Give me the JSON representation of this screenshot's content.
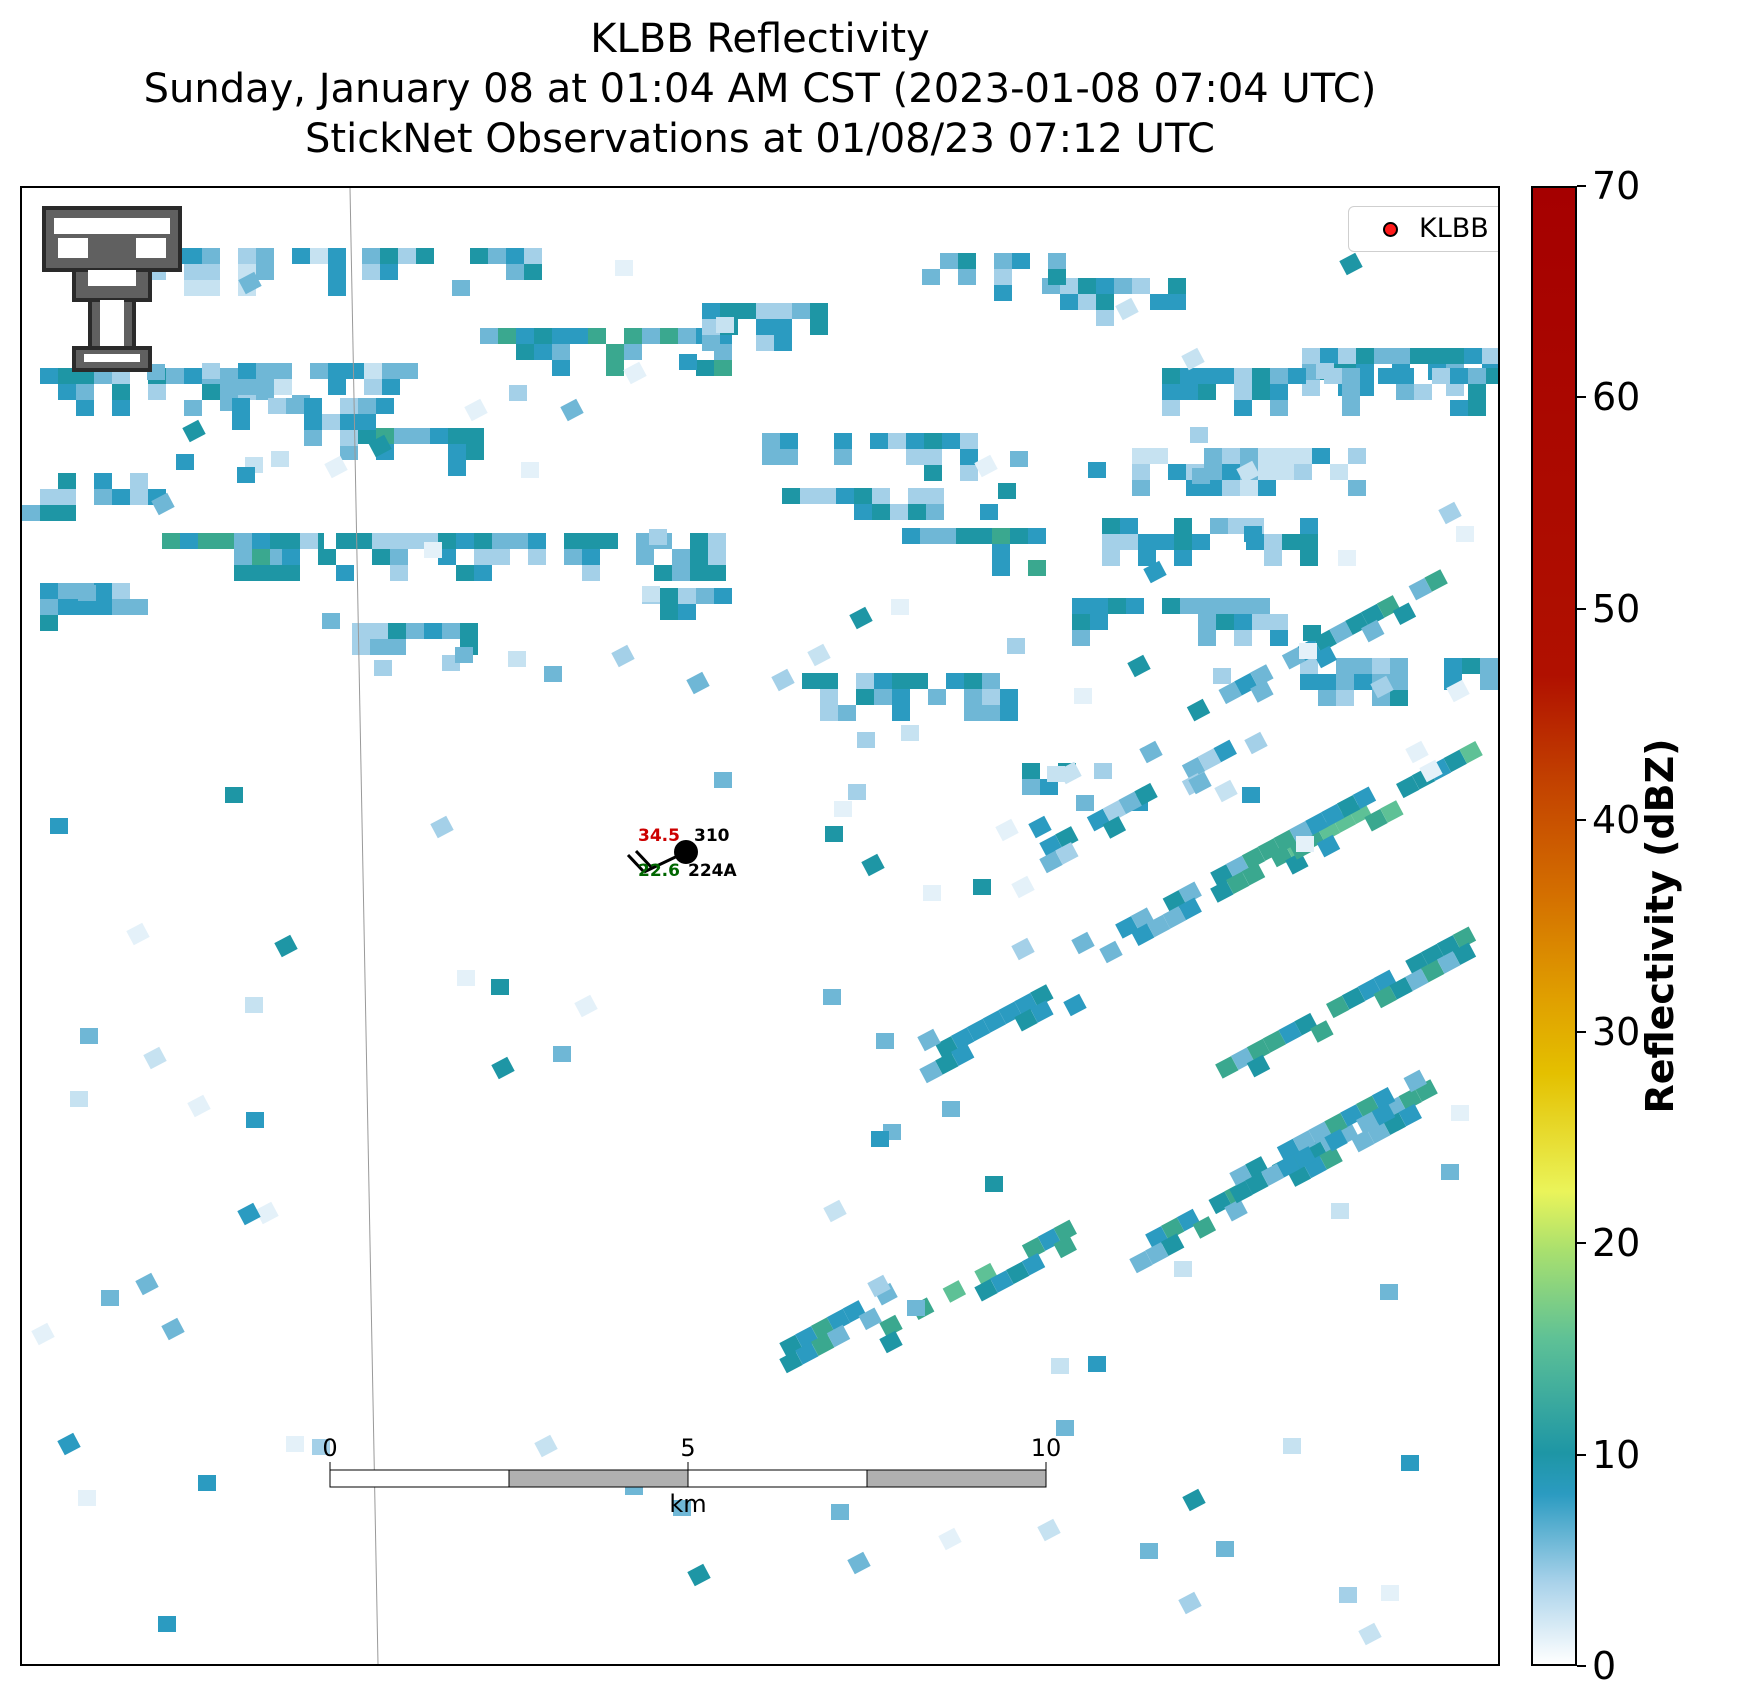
{
  "title": {
    "line1": "KLBB Reflectivity",
    "line2": "Sunday, January 08 at 01:04 AM CST (2023-01-08 07:04 UTC)",
    "line3": "StickNet Observations at 01/08/23 07:12 UTC"
  },
  "legend": {
    "label": "KLBB",
    "marker_color": "#ff1a1a"
  },
  "station": {
    "id": "224A",
    "temperature": "34.5",
    "dewpoint": "22.6",
    "pressure": "310",
    "temperature_color": "#cc0000",
    "dewpoint_color": "#006600"
  },
  "scalebar": {
    "unit": "km",
    "ticks": [
      "0",
      "5",
      "10"
    ]
  },
  "colorbar": {
    "label": "Reflectivity (dBZ)",
    "ticks": [
      "0",
      "10",
      "20",
      "30",
      "40",
      "50",
      "60",
      "70"
    ],
    "range": [
      0,
      70
    ]
  },
  "logo": {
    "name": "texas-tech-double-t-logo"
  }
}
